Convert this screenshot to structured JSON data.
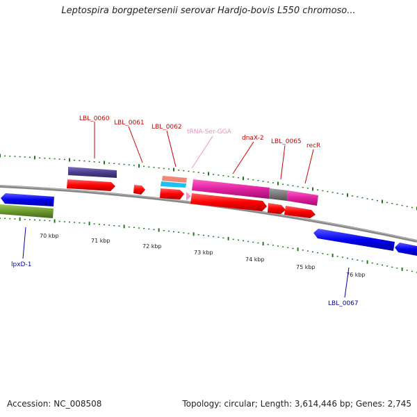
{
  "title": "Leptospira borgpetersenii serovar Hardjo-bovis L550 chromoso...",
  "footer": {
    "accession": "Accession: NC_008508",
    "summary": "Topology: circular; Length: 3,614,446 bp; Genes: 2,745"
  },
  "ticks": [
    "70 kbp",
    "71 kbp",
    "72 kbp",
    "73 kbp",
    "74 kbp",
    "75 kbp",
    "76 kbp"
  ],
  "labels": {
    "lbl_0060": "LBL_0060",
    "lbl_0061": "LBL_0061",
    "lbl_0062": "LBL_0062",
    "trna": "tRNA-Ser-GGA",
    "dnax": "dnaX-2",
    "lbl_0065": "LBL_0065",
    "recr": "recR",
    "lpxd": "lpxD-1",
    "lbl_0067": "LBL_0067"
  },
  "colors": {
    "cds": "#ff0000",
    "reverse_cds": "#0000ff",
    "magenta_feature": "#e020a0",
    "purple_feature": "#4b3f8f",
    "olive_feature": "#6b9a2e",
    "trna": "#f0a0c8",
    "label_red": "#cc0000",
    "label_blue": "#0000aa",
    "label_pink": "#f090c0",
    "tick_green": "#1a7a1a",
    "backbone": "#808080"
  }
}
